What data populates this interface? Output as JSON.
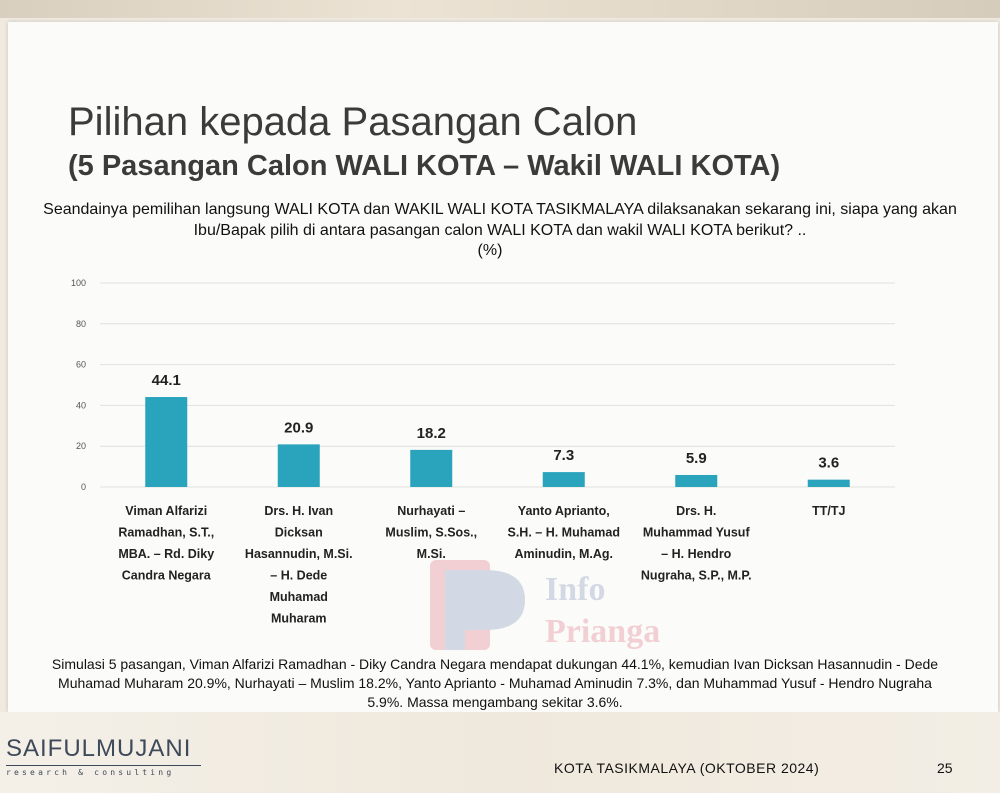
{
  "slide": {
    "title": "Pilihan kepada Pasangan Calon",
    "subtitle": "(5 Pasangan Calon WALI KOTA – Wakil WALI KOTA)",
    "question": "Seandainya pemilihan langsung WALI KOTA dan WAKIL WALI KOTA TASIKMALAYA dilaksanakan sekarang ini, siapa yang akan Ibu/Bapak pilih di antara pasangan calon WALI KOTA dan wakil WALI KOTA berikut? ..",
    "unit": "(%)",
    "summary": "Simulasi 5 pasangan, Viman Alfarizi Ramadhan - Diky Candra Negara mendapat dukungan 44.1%, kemudian Ivan Dicksan Hasannudin - Dede Muhamad Muharam 20.9%, Nurhayati – Muslim 18.2%, Yanto Aprianto - Muhamad Aminudin 7.3%, dan Muhammad Yusuf - Hendro Nugraha 5.9%. Massa mengambang sekitar 3.6%.",
    "watermark": "Info Priangan"
  },
  "footer": {
    "logo_main": "SAIFULMUJANI",
    "logo_sub": "research & consulting",
    "location_date": "KOTA TASIKMALAYA (OKTOBER 2024)",
    "page_number": "25"
  },
  "colors": {
    "bar": "#2aa3bd",
    "grid": "#e0e0e0",
    "tick_text": "#555555",
    "label_text": "#222222"
  },
  "chart_data": {
    "type": "bar",
    "categories": [
      [
        "Viman Alfarizi",
        "Ramadhan, S.T.,",
        "MBA. – Rd. Diky",
        "Candra Negara"
      ],
      [
        "Drs. H. Ivan",
        "Dicksan",
        "Hasannudin, M.Si.",
        "– H. Dede",
        "Muhamad",
        "Muharam"
      ],
      [
        "Nurhayati –",
        "Muslim, S.Sos.,",
        "M.Si."
      ],
      [
        "Yanto Aprianto,",
        "S.H. – H. Muhamad",
        "Aminudin, M.Ag."
      ],
      [
        "Drs. H.",
        "Muhammad Yusuf",
        "– H. Hendro",
        "Nugraha, S.P., M.P."
      ],
      [
        "TT/TJ"
      ]
    ],
    "values": [
      44.1,
      20.9,
      18.2,
      7.3,
      5.9,
      3.6
    ],
    "value_labels": [
      "44.1",
      "20.9",
      "18.2",
      "7.3",
      "5.9",
      "3.6"
    ],
    "ylim": [
      0,
      100
    ],
    "yticks": [
      0,
      20,
      40,
      60,
      80,
      100
    ],
    "grid": true
  }
}
